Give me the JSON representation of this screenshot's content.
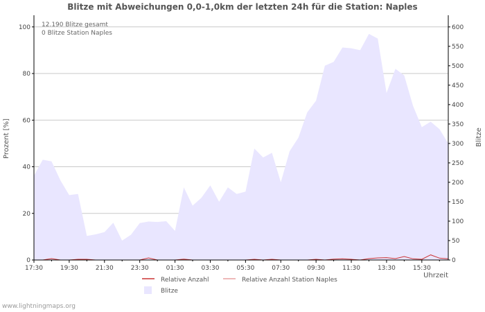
{
  "title": "Blitze mit Abweichungen 0,0-1,0km der letzten 24h für die Station: Naples",
  "footer": "www.lightningmaps.org",
  "info": {
    "line1": "12.190 Blitze gesamt",
    "line2": "0 Blitze Station Naples"
  },
  "colors": {
    "area_fill": "#e9e6ff",
    "line_relative": "#cc3333",
    "line_station": "#e8a0a0",
    "grid": "#c8c8c8",
    "axis": "#000000"
  },
  "chart_data": {
    "type": "area",
    "title": "Blitze mit Abweichungen 0,0-1,0km der letzten 24h für die Station: Naples",
    "ylabel_left": "Prozent   [%]",
    "ylabel_right": "Blitze",
    "xlabel": "Uhrzeit",
    "x_ticks": [
      "17:30",
      "19:30",
      "21:30",
      "23:30",
      "01:30",
      "03:30",
      "05:30",
      "07:30",
      "09:30",
      "11:30",
      "13:30",
      "15:30"
    ],
    "y_left_ticks": [
      0,
      20,
      40,
      60,
      80,
      100
    ],
    "y_right_ticks": [
      0,
      50,
      100,
      150,
      200,
      250,
      300,
      350,
      400,
      450,
      500,
      550,
      600
    ],
    "ylim_left": [
      0,
      105
    ],
    "ylim_right": [
      0,
      630
    ],
    "legend": [
      "Relative Anzahl",
      "Relative Anzahl Station Naples",
      "Blitze"
    ],
    "series": [
      {
        "name": "Blitze",
        "axis": "right",
        "values": [
          217,
          258,
          254,
          205,
          167,
          170,
          62,
          66,
          72,
          96,
          50,
          65,
          95,
          99,
          98,
          100,
          75,
          187,
          140,
          160,
          192,
          150,
          187,
          170,
          176,
          287,
          264,
          276,
          200,
          280,
          315,
          380,
          410,
          500,
          510,
          547,
          545,
          540,
          582,
          570,
          430,
          492,
          475,
          397,
          342,
          356,
          337,
          300
        ]
      },
      {
        "name": "Relative Anzahl",
        "axis": "left",
        "values": [
          0,
          0,
          0.6,
          0,
          0,
          0.3,
          0.3,
          0,
          0,
          0,
          0,
          0,
          0,
          0.9,
          0,
          0,
          0,
          0.4,
          0,
          0,
          0,
          0,
          0,
          0,
          0,
          0.3,
          0,
          0.3,
          0,
          0,
          0,
          0,
          0.3,
          0,
          0.4,
          0.5,
          0.3,
          0,
          0.6,
          0.9,
          1.0,
          0.6,
          1.5,
          0.5,
          0.3,
          2.2,
          0.8,
          0.5
        ]
      },
      {
        "name": "Relative Anzahl Station Naples",
        "axis": "left",
        "values": [
          0,
          0,
          0,
          0,
          0,
          0,
          0,
          0,
          0,
          0,
          0,
          0,
          0,
          0,
          0,
          0,
          0,
          0,
          0,
          0,
          0,
          0,
          0,
          0,
          0,
          0,
          0,
          0,
          0,
          0,
          0,
          0,
          0,
          0,
          0,
          0,
          0,
          0,
          0,
          0,
          0,
          0,
          0,
          0,
          0,
          0,
          0,
          0
        ]
      }
    ]
  }
}
